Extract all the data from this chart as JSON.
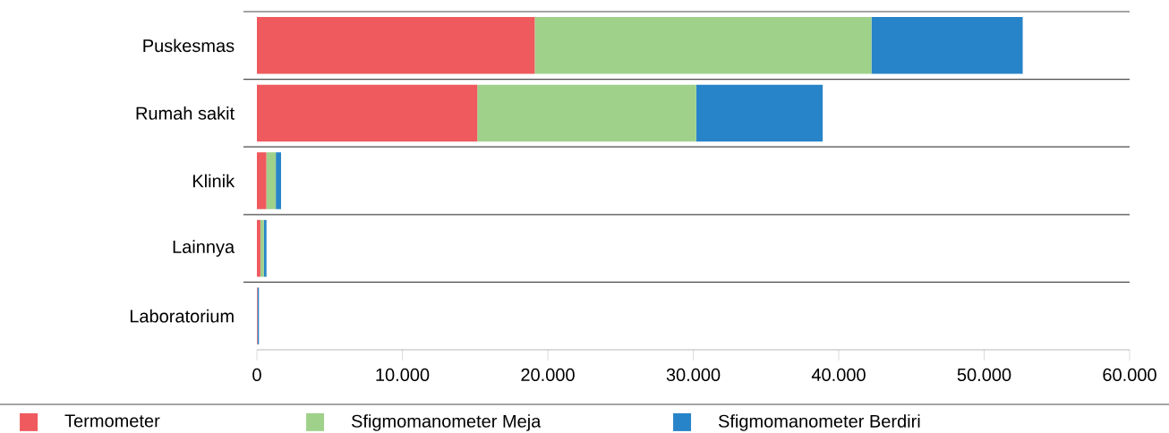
{
  "chart_data": {
    "type": "bar",
    "orientation": "horizontal",
    "stacked": true,
    "categories": [
      "Puskesmas",
      "Rumah sakit",
      "Klinik",
      "Lainnya",
      "Laboratorium"
    ],
    "series": [
      {
        "name": "Termometer",
        "color": "#ef5a5e",
        "values": [
          19100,
          15150,
          650,
          240,
          40
        ]
      },
      {
        "name": "Sfigmomanometer Meja",
        "color": "#9fd18b",
        "values": [
          23150,
          15050,
          650,
          240,
          0
        ]
      },
      {
        "name": "Sfigmomanometer Berdiri",
        "color": "#2884c8",
        "values": [
          10400,
          8700,
          360,
          180,
          100
        ]
      }
    ],
    "xlim": [
      0,
      60000
    ],
    "xticks": [
      {
        "value": 0,
        "label": "0"
      },
      {
        "value": 10000,
        "label": "10.000"
      },
      {
        "value": 20000,
        "label": "20.000"
      },
      {
        "value": 30000,
        "label": "30.000"
      },
      {
        "value": 40000,
        "label": "40.000"
      },
      {
        "value": 50000,
        "label": "50.000"
      },
      {
        "value": 60000,
        "label": "60.000"
      }
    ],
    "grid": "y",
    "legend": "bottom"
  }
}
